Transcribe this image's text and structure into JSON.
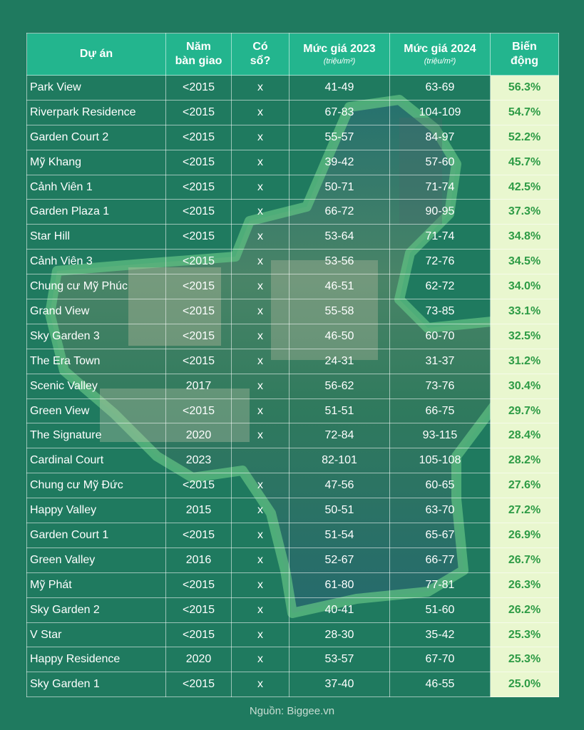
{
  "table": {
    "headers": {
      "project": "Dự án",
      "year_line1": "Năm",
      "year_line2": "bàn giao",
      "book_line1": "Có",
      "book_line2": "sổ?",
      "price2023": "Mức giá 2023",
      "price2024": "Mức giá 2024",
      "unit": "(triệu/m²)",
      "change_line1": "Biến",
      "change_line2": "động"
    },
    "rows": [
      {
        "name": "Park View",
        "year": "<2015",
        "book": "x",
        "p2023": "41-49",
        "p2024": "63-69",
        "change": "56.3%"
      },
      {
        "name": "Riverpark Residence",
        "year": "<2015",
        "book": "x",
        "p2023": "67-83",
        "p2024": "104-109",
        "change": "54.7%"
      },
      {
        "name": "Garden Court 2",
        "year": "<2015",
        "book": "x",
        "p2023": "55-57",
        "p2024": "84-97",
        "change": "52.2%"
      },
      {
        "name": "Mỹ Khang",
        "year": "<2015",
        "book": "x",
        "p2023": "39-42",
        "p2024": "57-60",
        "change": "45.7%"
      },
      {
        "name": "Cảnh Viên 1",
        "year": "<2015",
        "book": "x",
        "p2023": "50-71",
        "p2024": "71-74",
        "change": "42.5%"
      },
      {
        "name": "Garden Plaza 1",
        "year": "<2015",
        "book": "x",
        "p2023": "66-72",
        "p2024": "90-95",
        "change": "37.3%"
      },
      {
        "name": "Star Hill",
        "year": "<2015",
        "book": "x",
        "p2023": "53-64",
        "p2024": "71-74",
        "change": "34.8%"
      },
      {
        "name": "Cảnh Viên 3",
        "year": "<2015",
        "book": "x",
        "p2023": "53-56",
        "p2024": "72-76",
        "change": "34.5%"
      },
      {
        "name": "Chung cư Mỹ Phúc",
        "year": "<2015",
        "book": "x",
        "p2023": "46-51",
        "p2024": "62-72",
        "change": "34.0%"
      },
      {
        "name": "Grand View",
        "year": "<2015",
        "book": "x",
        "p2023": "55-58",
        "p2024": "73-85",
        "change": "33.1%"
      },
      {
        "name": "Sky Garden 3",
        "year": "<2015",
        "book": "x",
        "p2023": "46-50",
        "p2024": "60-70",
        "change": "32.5%"
      },
      {
        "name": "The Era Town",
        "year": "<2015",
        "book": "x",
        "p2023": "24-31",
        "p2024": "31-37",
        "change": "31.2%"
      },
      {
        "name": "Scenic Valley",
        "year": "2017",
        "book": "x",
        "p2023": "56-62",
        "p2024": "73-76",
        "change": "30.4%"
      },
      {
        "name": "Green View",
        "year": "<2015",
        "book": "x",
        "p2023": "51-51",
        "p2024": "66-75",
        "change": "29.7%"
      },
      {
        "name": "The Signature",
        "year": "2020",
        "book": "x",
        "p2023": "72-84",
        "p2024": "93-115",
        "change": "28.4%"
      },
      {
        "name": "Cardinal Court",
        "year": "2023",
        "book": "",
        "p2023": "82-101",
        "p2024": "105-108",
        "change": "28.2%"
      },
      {
        "name": "Chung cư Mỹ Đức",
        "year": "<2015",
        "book": "x",
        "p2023": "47-56",
        "p2024": "60-65",
        "change": "27.6%"
      },
      {
        "name": "Happy Valley",
        "year": "2015",
        "book": "x",
        "p2023": "50-51",
        "p2024": "63-70",
        "change": "27.2%"
      },
      {
        "name": "Garden Court 1",
        "year": "<2015",
        "book": "x",
        "p2023": "51-54",
        "p2024": "65-67",
        "change": "26.9%"
      },
      {
        "name": "Green Valley",
        "year": "2016",
        "book": "x",
        "p2023": "52-67",
        "p2024": "66-77",
        "change": "26.7%"
      },
      {
        "name": "Mỹ Phát",
        "year": "<2015",
        "book": "x",
        "p2023": "61-80",
        "p2024": "77-81",
        "change": "26.3%"
      },
      {
        "name": "Sky Garden 2",
        "year": "<2015",
        "book": "x",
        "p2023": "40-41",
        "p2024": "51-60",
        "change": "26.2%"
      },
      {
        "name": "V Star",
        "year": "<2015",
        "book": "x",
        "p2023": "28-30",
        "p2024": "35-42",
        "change": "25.3%"
      },
      {
        "name": "Happy Residence",
        "year": "2020",
        "book": "x",
        "p2023": "53-57",
        "p2024": "67-70",
        "change": "25.3%"
      },
      {
        "name": "Sky Garden 1",
        "year": "<2015",
        "book": "x",
        "p2023": "37-40",
        "p2024": "46-55",
        "change": "25.0%"
      }
    ]
  },
  "source": "Nguồn: Biggee.vn",
  "colors": {
    "background": "#1f7a5f",
    "header": "#23b58e",
    "change_bg": "#e9f7cf",
    "change_text": "#2d9b45"
  }
}
